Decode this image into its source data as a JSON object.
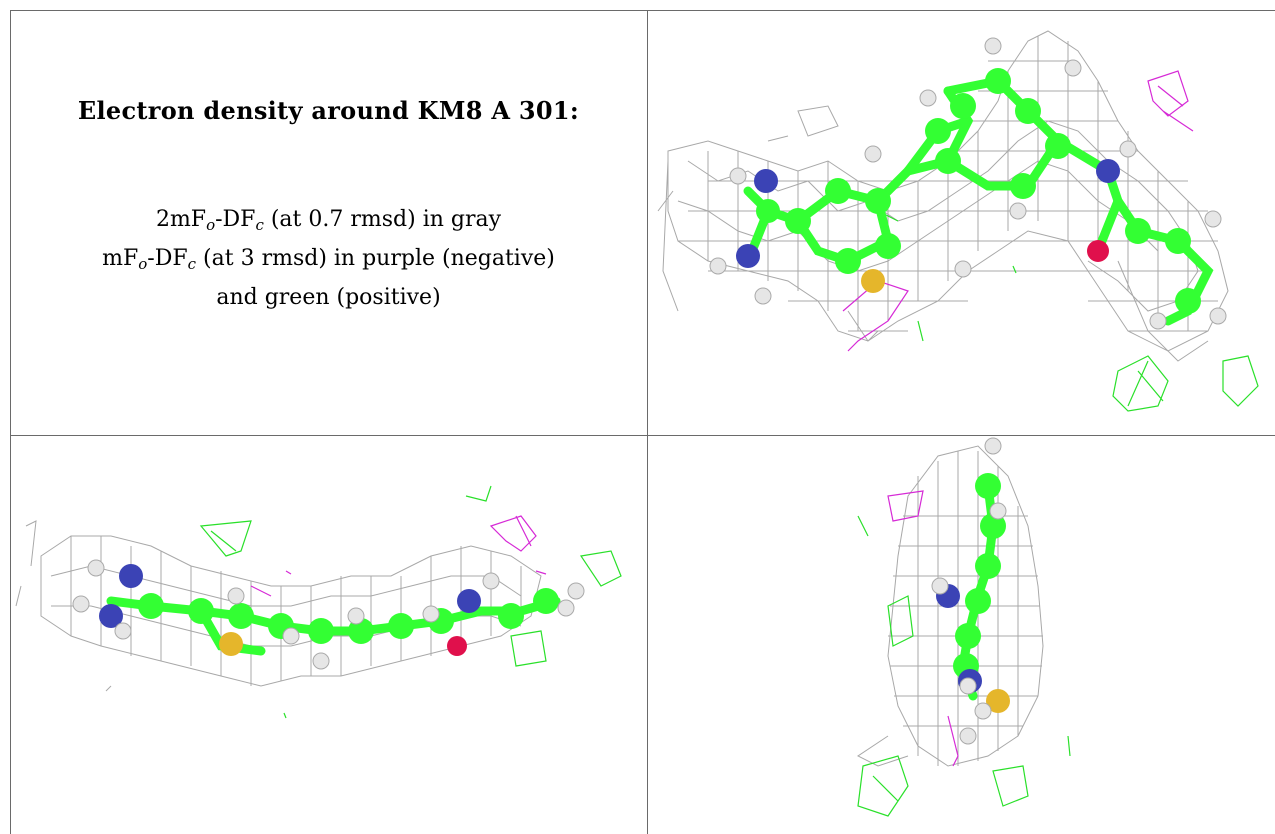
{
  "caption": {
    "title": "Electron density around KM8 A 301:",
    "line1_a": "2mF",
    "line1_sub1": "o",
    "line1_b": "-DF",
    "line1_sub2": "c",
    "line1_c": " (at 0.7 rmsd) in gray",
    "line2_a": "mF",
    "line2_sub1": "o",
    "line2_b": "-DF",
    "line2_sub2": "c",
    "line2_c": " (at 3 rmsd) in purple (negative)",
    "line3": "and green (positive)"
  },
  "panels": [
    {
      "name": "view-1",
      "description_colors": {
        "mesh": "#9a9a9a",
        "carbon": "#33ff33",
        "nitrogen": "#3b43b5",
        "oxygen": "#e0104c",
        "sulfur": "#e5b62b",
        "hydrogen": "#e6e6e6",
        "positive": "#2ae02a",
        "negative": "#d62ad6"
      }
    },
    {
      "name": "view-2"
    },
    {
      "name": "view-3"
    }
  ]
}
